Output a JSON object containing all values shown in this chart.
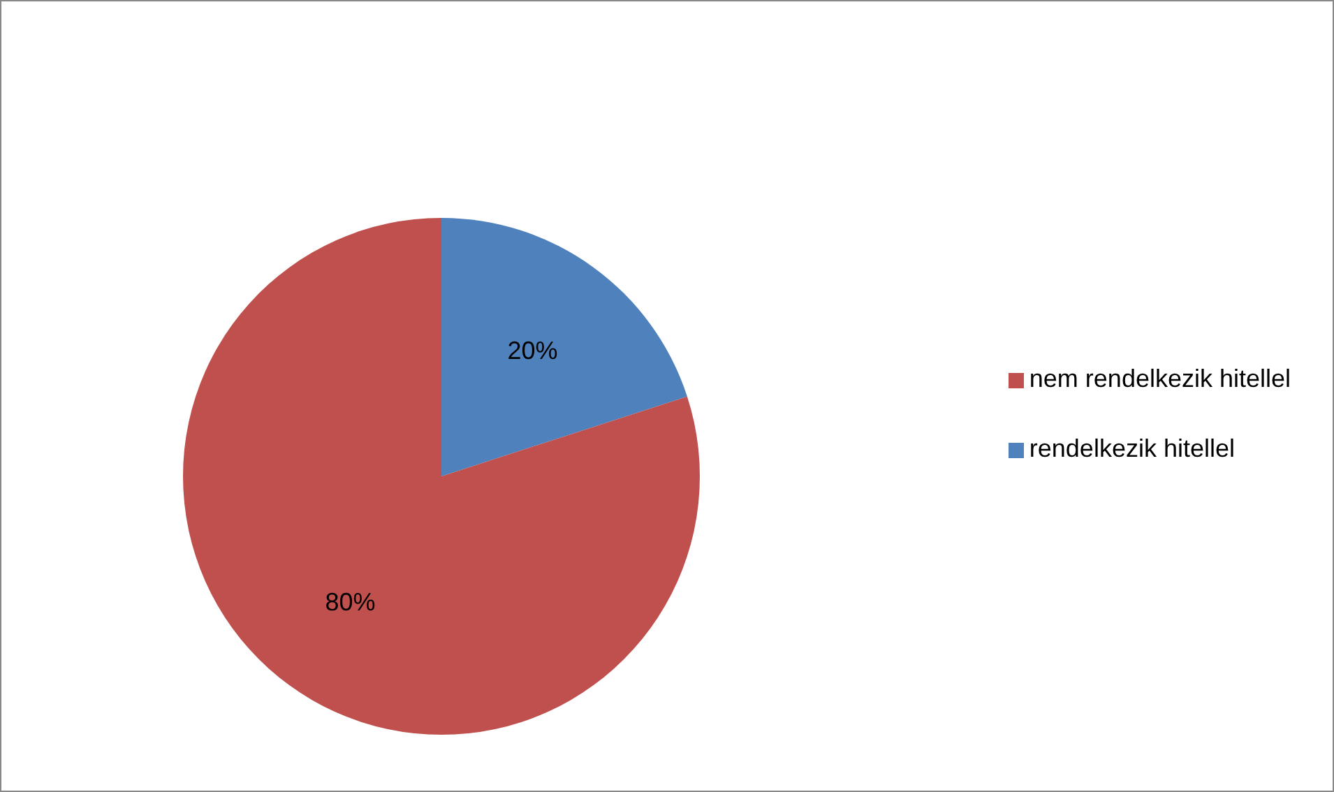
{
  "chart_data": {
    "type": "pie",
    "categories": [
      "rendelkezik hitellel",
      "nem rendelkezik hitellel"
    ],
    "values": [
      20,
      80
    ],
    "colors": [
      "#4f81bd",
      "#c0504d"
    ],
    "value_labels": [
      "20%",
      "80%"
    ],
    "legend": "right"
  }
}
